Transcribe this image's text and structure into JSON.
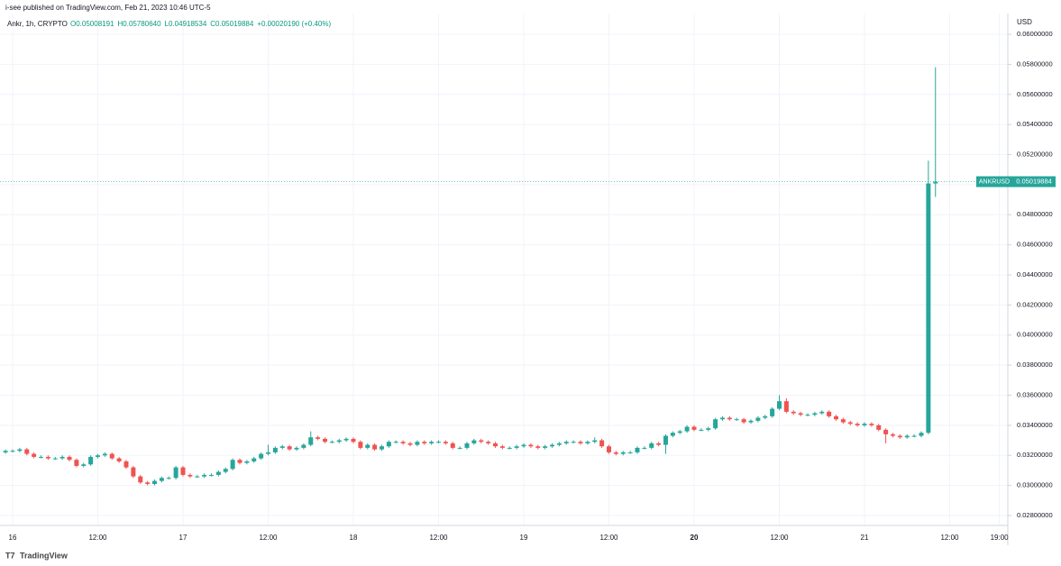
{
  "header": {
    "publisher": "i-see published on TradingView.com, Feb 21, 2023 10:46 UTC-5",
    "symbol": "Ankr, 1h, CRYPTO",
    "ohlc": [
      "O0.05008191",
      "H0.05780640",
      "L0.04918534",
      "C0.05019884",
      "+0.00020190 (+0.40%)"
    ]
  },
  "chart_data": {
    "type": "candlestick",
    "currency": "USD",
    "ticker": "ANKRUSD",
    "last_price": 0.05019884,
    "up_color": "#26a69a",
    "down_color": "#ef5350",
    "grid": true,
    "ylim": [
      0.02734,
      0.06138
    ],
    "yticks": [
      {
        "value": 0.028,
        "label": "0.02800000"
      },
      {
        "value": 0.03,
        "label": "0.03000000"
      },
      {
        "value": 0.032,
        "label": "0.03200000"
      },
      {
        "value": 0.034,
        "label": "0.03400000"
      },
      {
        "value": 0.036,
        "label": "0.03600000"
      },
      {
        "value": 0.038,
        "label": "0.03800000"
      },
      {
        "value": 0.04,
        "label": "0.04000000"
      },
      {
        "value": 0.042,
        "label": "0.04200000"
      },
      {
        "value": 0.044,
        "label": "0.04400000"
      },
      {
        "value": 0.046,
        "label": "0.04600000"
      },
      {
        "value": 0.048,
        "label": "0.04800000"
      },
      {
        "value": 0.05,
        "label": "0.05000000"
      },
      {
        "value": 0.052,
        "label": "0.05200000"
      },
      {
        "value": 0.054,
        "label": "0.05400000"
      },
      {
        "value": 0.056,
        "label": "0.05600000"
      },
      {
        "value": 0.058,
        "label": "0.05800000"
      },
      {
        "value": 0.06,
        "label": "0.06000000"
      }
    ],
    "xticks": [
      "16",
      "12:00",
      "17",
      "12:00",
      "18",
      "12:00",
      "19",
      "12:00",
      "20",
      "12:00",
      "21",
      "12:00",
      "19:00"
    ],
    "candles": [
      [
        0.0322,
        0.0324,
        0.0321,
        0.0323
      ],
      [
        0.0323,
        0.0324,
        0.0322,
        0.0323
      ],
      [
        0.0323,
        0.0325,
        0.0322,
        0.0324
      ],
      [
        0.0324,
        0.0325,
        0.032,
        0.0321
      ],
      [
        0.0321,
        0.0322,
        0.0318,
        0.0319
      ],
      [
        0.0319,
        0.032,
        0.0318,
        0.0319
      ],
      [
        0.0319,
        0.032,
        0.0317,
        0.0318
      ],
      [
        0.0318,
        0.0319,
        0.0317,
        0.0318
      ],
      [
        0.0318,
        0.032,
        0.0317,
        0.0319
      ],
      [
        0.0319,
        0.032,
        0.0316,
        0.0317
      ],
      [
        0.0317,
        0.0318,
        0.0312,
        0.0313
      ],
      [
        0.0313,
        0.0315,
        0.0312,
        0.0314
      ],
      [
        0.0314,
        0.032,
        0.0313,
        0.0319
      ],
      [
        0.0319,
        0.0321,
        0.0318,
        0.032
      ],
      [
        0.032,
        0.0322,
        0.0319,
        0.0321
      ],
      [
        0.0321,
        0.0322,
        0.0317,
        0.0318
      ],
      [
        0.0318,
        0.0319,
        0.0315,
        0.0316
      ],
      [
        0.0316,
        0.0317,
        0.0311,
        0.0312
      ],
      [
        0.0312,
        0.0313,
        0.0305,
        0.0306
      ],
      [
        0.0306,
        0.0307,
        0.0301,
        0.0302
      ],
      [
        0.0302,
        0.0303,
        0.03,
        0.0301
      ],
      [
        0.0301,
        0.0304,
        0.03,
        0.0303
      ],
      [
        0.0303,
        0.0306,
        0.0302,
        0.0305
      ],
      [
        0.0305,
        0.0306,
        0.0304,
        0.0305
      ],
      [
        0.0305,
        0.0313,
        0.0304,
        0.0312
      ],
      [
        0.0312,
        0.0313,
        0.0306,
        0.0307
      ],
      [
        0.0307,
        0.0308,
        0.0305,
        0.0306
      ],
      [
        0.0306,
        0.0307,
        0.0305,
        0.0306
      ],
      [
        0.0306,
        0.0308,
        0.0305,
        0.0307
      ],
      [
        0.0307,
        0.0308,
        0.0306,
        0.0307
      ],
      [
        0.0307,
        0.031,
        0.0306,
        0.0309
      ],
      [
        0.0309,
        0.0312,
        0.0308,
        0.0311
      ],
      [
        0.0311,
        0.0318,
        0.031,
        0.0317
      ],
      [
        0.0317,
        0.0318,
        0.0314,
        0.0315
      ],
      [
        0.0315,
        0.0317,
        0.0314,
        0.0316
      ],
      [
        0.0316,
        0.0319,
        0.0315,
        0.0318
      ],
      [
        0.0318,
        0.0322,
        0.0317,
        0.0321
      ],
      [
        0.0321,
        0.0327,
        0.032,
        0.0322
      ],
      [
        0.0322,
        0.0326,
        0.0321,
        0.0325
      ],
      [
        0.0325,
        0.0327,
        0.0324,
        0.0326
      ],
      [
        0.0326,
        0.0327,
        0.0323,
        0.0324
      ],
      [
        0.0324,
        0.0326,
        0.0323,
        0.0325
      ],
      [
        0.0325,
        0.0328,
        0.0324,
        0.0327
      ],
      [
        0.0327,
        0.0336,
        0.0326,
        0.0332
      ],
      [
        0.0332,
        0.0333,
        0.033,
        0.0331
      ],
      [
        0.0331,
        0.0332,
        0.0328,
        0.0329
      ],
      [
        0.0329,
        0.033,
        0.0328,
        0.0329
      ],
      [
        0.0329,
        0.0331,
        0.0328,
        0.033
      ],
      [
        0.033,
        0.0332,
        0.0329,
        0.0331
      ],
      [
        0.0331,
        0.0332,
        0.0328,
        0.0329
      ],
      [
        0.0329,
        0.033,
        0.0324,
        0.0325
      ],
      [
        0.0325,
        0.0328,
        0.0324,
        0.0327
      ],
      [
        0.0327,
        0.0328,
        0.0323,
        0.0324
      ],
      [
        0.0324,
        0.0327,
        0.0323,
        0.0326
      ],
      [
        0.0326,
        0.033,
        0.0325,
        0.0329
      ],
      [
        0.0329,
        0.033,
        0.0328,
        0.0329
      ],
      [
        0.0329,
        0.033,
        0.0327,
        0.0328
      ],
      [
        0.0328,
        0.0329,
        0.0326,
        0.0327
      ],
      [
        0.0327,
        0.033,
        0.0326,
        0.0329
      ],
      [
        0.0329,
        0.033,
        0.0327,
        0.0328
      ],
      [
        0.0328,
        0.033,
        0.0327,
        0.0329
      ],
      [
        0.0329,
        0.033,
        0.0328,
        0.0329
      ],
      [
        0.0329,
        0.033,
        0.0327,
        0.0328
      ],
      [
        0.0328,
        0.0329,
        0.0324,
        0.0325
      ],
      [
        0.0325,
        0.0326,
        0.0324,
        0.0325
      ],
      [
        0.0325,
        0.0329,
        0.0324,
        0.0328
      ],
      [
        0.0328,
        0.0331,
        0.0327,
        0.033
      ],
      [
        0.033,
        0.0331,
        0.0328,
        0.0329
      ],
      [
        0.0329,
        0.033,
        0.0327,
        0.0328
      ],
      [
        0.0328,
        0.0329,
        0.0325,
        0.0326
      ],
      [
        0.0326,
        0.0327,
        0.0324,
        0.0325
      ],
      [
        0.0325,
        0.0326,
        0.0324,
        0.0325
      ],
      [
        0.0325,
        0.0327,
        0.0324,
        0.0326
      ],
      [
        0.0326,
        0.0328,
        0.0325,
        0.0327
      ],
      [
        0.0327,
        0.0328,
        0.0325,
        0.0326
      ],
      [
        0.0326,
        0.0327,
        0.0324,
        0.0325
      ],
      [
        0.0325,
        0.0327,
        0.0324,
        0.0326
      ],
      [
        0.0326,
        0.0328,
        0.0325,
        0.0327
      ],
      [
        0.0327,
        0.0329,
        0.0326,
        0.0328
      ],
      [
        0.0328,
        0.033,
        0.0327,
        0.0329
      ],
      [
        0.0329,
        0.033,
        0.0328,
        0.0329
      ],
      [
        0.0329,
        0.033,
        0.0327,
        0.0328
      ],
      [
        0.0328,
        0.033,
        0.0327,
        0.0329
      ],
      [
        0.0329,
        0.0332,
        0.0328,
        0.033
      ],
      [
        0.033,
        0.0331,
        0.0325,
        0.0326
      ],
      [
        0.0326,
        0.0327,
        0.0321,
        0.0322
      ],
      [
        0.0322,
        0.0323,
        0.032,
        0.0321
      ],
      [
        0.0321,
        0.0323,
        0.032,
        0.0322
      ],
      [
        0.0322,
        0.0323,
        0.0321,
        0.0322
      ],
      [
        0.0322,
        0.0326,
        0.0321,
        0.0325
      ],
      [
        0.0325,
        0.0326,
        0.0324,
        0.0325
      ],
      [
        0.0325,
        0.0329,
        0.0324,
        0.0328
      ],
      [
        0.0328,
        0.0329,
        0.0326,
        0.0327
      ],
      [
        0.0327,
        0.0334,
        0.0321,
        0.0333
      ],
      [
        0.0333,
        0.0336,
        0.0332,
        0.0335
      ],
      [
        0.0335,
        0.0337,
        0.0334,
        0.0336
      ],
      [
        0.0336,
        0.034,
        0.0335,
        0.0339
      ],
      [
        0.0339,
        0.034,
        0.0336,
        0.0337
      ],
      [
        0.0337,
        0.0338,
        0.0336,
        0.0337
      ],
      [
        0.0337,
        0.0339,
        0.0336,
        0.0338
      ],
      [
        0.0338,
        0.0345,
        0.0337,
        0.0344
      ],
      [
        0.0344,
        0.0346,
        0.0343,
        0.0345
      ],
      [
        0.0345,
        0.0346,
        0.0343,
        0.0344
      ],
      [
        0.0344,
        0.0345,
        0.0343,
        0.0344
      ],
      [
        0.0344,
        0.0345,
        0.0341,
        0.0342
      ],
      [
        0.0342,
        0.0344,
        0.0341,
        0.0343
      ],
      [
        0.0343,
        0.0346,
        0.0342,
        0.0345
      ],
      [
        0.0345,
        0.0347,
        0.0344,
        0.0346
      ],
      [
        0.0346,
        0.0352,
        0.0345,
        0.0351
      ],
      [
        0.0351,
        0.036,
        0.035,
        0.0356
      ],
      [
        0.0356,
        0.0358,
        0.0348,
        0.0349
      ],
      [
        0.0349,
        0.035,
        0.0347,
        0.0348
      ],
      [
        0.0348,
        0.0349,
        0.0346,
        0.0347
      ],
      [
        0.0347,
        0.0348,
        0.0346,
        0.0347
      ],
      [
        0.0347,
        0.0349,
        0.0346,
        0.0348
      ],
      [
        0.0348,
        0.035,
        0.0347,
        0.0349
      ],
      [
        0.0349,
        0.035,
        0.0345,
        0.0346
      ],
      [
        0.0346,
        0.0347,
        0.0343,
        0.0344
      ],
      [
        0.0344,
        0.0345,
        0.0341,
        0.0342
      ],
      [
        0.0342,
        0.0343,
        0.034,
        0.0341
      ],
      [
        0.0341,
        0.0342,
        0.0339,
        0.034
      ],
      [
        0.034,
        0.0342,
        0.0339,
        0.0341
      ],
      [
        0.0341,
        0.0342,
        0.0339,
        0.034
      ],
      [
        0.034,
        0.0341,
        0.0336,
        0.0337
      ],
      [
        0.0337,
        0.0338,
        0.0328,
        0.0334
      ],
      [
        0.0334,
        0.0335,
        0.0332,
        0.0333
      ],
      [
        0.0333,
        0.0334,
        0.0331,
        0.0332
      ],
      [
        0.0332,
        0.0334,
        0.0331,
        0.0333
      ],
      [
        0.0333,
        0.0334,
        0.0332,
        0.0333
      ],
      [
        0.0333,
        0.0336,
        0.0332,
        0.0335
      ],
      [
        0.0335,
        0.0516,
        0.0334,
        0.05008
      ],
      [
        0.05008191,
        0.0578064,
        0.04918534,
        0.05019884
      ]
    ]
  },
  "footer": {
    "brand": "TradingView"
  }
}
